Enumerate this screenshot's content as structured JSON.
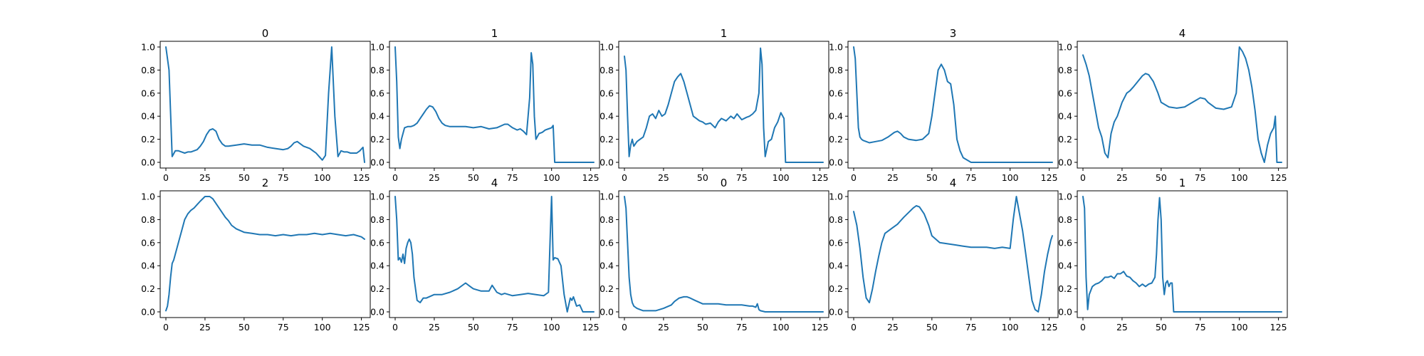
{
  "colors": {
    "series": "#1f77b4",
    "axes": "#000000",
    "background": "#ffffff"
  },
  "chart_data": [
    {
      "type": "line",
      "title": "0",
      "xlim": [
        0,
        127
      ],
      "ylim": [
        0,
        1
      ],
      "grid": false,
      "xticks": [
        0,
        25,
        50,
        75,
        100,
        125
      ],
      "yticks": [
        0.0,
        0.2,
        0.4,
        0.6,
        0.8,
        1.0
      ],
      "xticklabels": [
        "0",
        "25",
        "50",
        "75",
        "100",
        "125"
      ],
      "yticklabels": [
        "0.0",
        "0.2",
        "0.4",
        "0.6",
        "0.8",
        "1.0"
      ],
      "x": [
        0,
        2,
        4,
        6,
        8,
        10,
        12,
        14,
        16,
        18,
        20,
        22,
        24,
        26,
        28,
        30,
        32,
        34,
        36,
        38,
        40,
        45,
        50,
        55,
        60,
        65,
        70,
        75,
        78,
        80,
        82,
        84,
        86,
        88,
        90,
        92,
        94,
        96,
        98,
        100,
        102,
        104,
        106,
        108,
        110,
        112,
        114,
        116,
        118,
        120,
        122,
        124,
        126,
        127
      ],
      "y": [
        1.0,
        0.8,
        0.05,
        0.1,
        0.1,
        0.09,
        0.08,
        0.09,
        0.09,
        0.1,
        0.11,
        0.14,
        0.18,
        0.24,
        0.28,
        0.29,
        0.27,
        0.2,
        0.16,
        0.14,
        0.14,
        0.15,
        0.16,
        0.15,
        0.15,
        0.13,
        0.12,
        0.11,
        0.12,
        0.14,
        0.17,
        0.18,
        0.16,
        0.14,
        0.13,
        0.12,
        0.1,
        0.08,
        0.05,
        0.02,
        0.06,
        0.6,
        1.0,
        0.4,
        0.05,
        0.1,
        0.09,
        0.09,
        0.08,
        0.08,
        0.08,
        0.1,
        0.13,
        0.0
      ]
    },
    {
      "type": "line",
      "title": "1",
      "xlim": [
        0,
        127
      ],
      "ylim": [
        0,
        1
      ],
      "grid": false,
      "xticks": [
        0,
        25,
        50,
        75,
        100,
        125
      ],
      "yticks": [
        0.0,
        0.2,
        0.4,
        0.6,
        0.8,
        1.0
      ],
      "xticklabels": [
        "0",
        "25",
        "50",
        "75",
        "100",
        "125"
      ],
      "yticklabels": [
        "0.0",
        "0.2",
        "0.4",
        "0.6",
        "0.8",
        "1.0"
      ],
      "x": [
        0,
        1,
        2,
        3,
        4,
        6,
        8,
        10,
        12,
        14,
        16,
        18,
        20,
        22,
        24,
        26,
        28,
        30,
        32,
        35,
        40,
        45,
        50,
        55,
        60,
        65,
        70,
        72,
        75,
        78,
        80,
        82,
        84,
        86,
        87,
        88,
        89,
        90,
        92,
        94,
        96,
        98,
        100,
        101,
        102,
        127
      ],
      "y": [
        1.0,
        0.7,
        0.22,
        0.12,
        0.2,
        0.3,
        0.31,
        0.31,
        0.32,
        0.34,
        0.38,
        0.42,
        0.46,
        0.49,
        0.48,
        0.44,
        0.38,
        0.34,
        0.32,
        0.31,
        0.31,
        0.31,
        0.3,
        0.31,
        0.29,
        0.3,
        0.33,
        0.33,
        0.3,
        0.28,
        0.29,
        0.27,
        0.24,
        0.56,
        0.95,
        0.85,
        0.4,
        0.2,
        0.25,
        0.26,
        0.28,
        0.29,
        0.3,
        0.32,
        0.0,
        0.0
      ]
    },
    {
      "type": "line",
      "title": "1",
      "xlim": [
        0,
        127
      ],
      "ylim": [
        0,
        1
      ],
      "grid": false,
      "xticks": [
        0,
        25,
        50,
        75,
        100,
        125
      ],
      "yticks": [
        0.0,
        0.2,
        0.4,
        0.6,
        0.8,
        1.0
      ],
      "xticklabels": [
        "0",
        "25",
        "50",
        "75",
        "100",
        "125"
      ],
      "yticklabels": [
        "0.0",
        "0.2",
        "0.4",
        "0.6",
        "0.8",
        "1.0"
      ],
      "x": [
        0,
        1,
        2,
        3,
        4,
        5,
        6,
        8,
        10,
        12,
        14,
        16,
        18,
        20,
        22,
        24,
        26,
        28,
        30,
        32,
        34,
        36,
        38,
        40,
        42,
        44,
        46,
        48,
        50,
        52,
        55,
        58,
        60,
        62,
        65,
        68,
        70,
        72,
        75,
        78,
        80,
        82,
        84,
        86,
        87,
        88,
        89,
        90,
        92,
        94,
        96,
        98,
        100,
        102,
        103,
        127
      ],
      "y": [
        0.92,
        0.8,
        0.4,
        0.05,
        0.15,
        0.2,
        0.14,
        0.18,
        0.2,
        0.22,
        0.3,
        0.4,
        0.42,
        0.38,
        0.45,
        0.4,
        0.42,
        0.5,
        0.6,
        0.7,
        0.74,
        0.77,
        0.7,
        0.6,
        0.5,
        0.4,
        0.38,
        0.36,
        0.35,
        0.33,
        0.34,
        0.3,
        0.35,
        0.38,
        0.36,
        0.4,
        0.38,
        0.42,
        0.37,
        0.39,
        0.4,
        0.42,
        0.45,
        0.6,
        0.99,
        0.85,
        0.3,
        0.05,
        0.18,
        0.2,
        0.3,
        0.35,
        0.43,
        0.38,
        0.0,
        0.0
      ]
    },
    {
      "type": "line",
      "title": "3",
      "xlim": [
        0,
        127
      ],
      "ylim": [
        0,
        1
      ],
      "grid": false,
      "xticks": [
        0,
        25,
        50,
        75,
        100,
        125
      ],
      "yticks": [
        0.0,
        0.2,
        0.4,
        0.6,
        0.8,
        1.0
      ],
      "xticklabels": [
        "0",
        "25",
        "50",
        "75",
        "100",
        "125"
      ],
      "yticklabels": [
        "0.0",
        "0.2",
        "0.4",
        "0.6",
        "0.8",
        "1.0"
      ],
      "x": [
        0,
        1,
        2,
        3,
        4,
        5,
        6,
        8,
        10,
        14,
        18,
        22,
        26,
        28,
        30,
        32,
        35,
        40,
        44,
        48,
        50,
        52,
        54,
        56,
        58,
        60,
        62,
        64,
        66,
        68,
        70,
        75,
        80,
        90,
        100,
        110,
        120,
        127
      ],
      "y": [
        1.0,
        0.9,
        0.6,
        0.3,
        0.22,
        0.2,
        0.19,
        0.18,
        0.17,
        0.18,
        0.19,
        0.22,
        0.26,
        0.27,
        0.25,
        0.22,
        0.2,
        0.19,
        0.2,
        0.25,
        0.4,
        0.6,
        0.8,
        0.85,
        0.8,
        0.7,
        0.68,
        0.5,
        0.2,
        0.1,
        0.04,
        0.0,
        0.0,
        0.0,
        0.0,
        0.0,
        0.0,
        0.0
      ]
    },
    {
      "type": "line",
      "title": "4",
      "xlim": [
        0,
        127
      ],
      "ylim": [
        0,
        1
      ],
      "grid": false,
      "xticks": [
        0,
        25,
        50,
        75,
        100,
        125
      ],
      "yticks": [
        0.0,
        0.2,
        0.4,
        0.6,
        0.8,
        1.0
      ],
      "xticklabels": [
        "0",
        "25",
        "50",
        "75",
        "100",
        "125"
      ],
      "yticklabels": [
        "0.0",
        "0.2",
        "0.4",
        "0.6",
        "0.8",
        "1.0"
      ],
      "x": [
        0,
        2,
        4,
        6,
        8,
        10,
        12,
        14,
        16,
        18,
        20,
        22,
        25,
        28,
        30,
        32,
        35,
        38,
        40,
        42,
        45,
        48,
        50,
        55,
        60,
        65,
        70,
        75,
        78,
        80,
        85,
        90,
        95,
        98,
        100,
        102,
        104,
        106,
        108,
        110,
        112,
        114,
        116,
        118,
        120,
        122,
        123,
        124,
        127
      ],
      "y": [
        0.93,
        0.85,
        0.75,
        0.6,
        0.45,
        0.3,
        0.22,
        0.08,
        0.04,
        0.25,
        0.35,
        0.4,
        0.52,
        0.6,
        0.62,
        0.65,
        0.7,
        0.75,
        0.77,
        0.76,
        0.7,
        0.6,
        0.52,
        0.48,
        0.47,
        0.48,
        0.52,
        0.56,
        0.55,
        0.52,
        0.47,
        0.46,
        0.48,
        0.6,
        1.0,
        0.96,
        0.9,
        0.8,
        0.65,
        0.45,
        0.2,
        0.08,
        0.0,
        0.15,
        0.25,
        0.3,
        0.4,
        0.0,
        0.0
      ]
    },
    {
      "type": "line",
      "title": "2",
      "xlim": [
        0,
        127
      ],
      "ylim": [
        0,
        1
      ],
      "grid": false,
      "xticks": [
        0,
        25,
        50,
        75,
        100,
        125
      ],
      "yticks": [
        0.0,
        0.2,
        0.4,
        0.6,
        0.8,
        1.0
      ],
      "xticklabels": [
        "0",
        "25",
        "50",
        "75",
        "100",
        "125"
      ],
      "yticklabels": [
        "0.0",
        "0.2",
        "0.4",
        "0.6",
        "0.8",
        "1.0"
      ],
      "x": [
        0,
        1,
        2,
        3,
        4,
        5,
        6,
        8,
        10,
        12,
        14,
        16,
        18,
        20,
        22,
        25,
        28,
        30,
        32,
        35,
        38,
        40,
        42,
        45,
        50,
        55,
        60,
        65,
        70,
        75,
        80,
        85,
        90,
        95,
        100,
        105,
        110,
        115,
        120,
        125,
        127
      ],
      "y": [
        0.01,
        0.05,
        0.15,
        0.3,
        0.42,
        0.45,
        0.5,
        0.6,
        0.7,
        0.8,
        0.85,
        0.88,
        0.9,
        0.93,
        0.96,
        1.0,
        1.0,
        0.98,
        0.94,
        0.88,
        0.82,
        0.79,
        0.75,
        0.72,
        0.69,
        0.68,
        0.67,
        0.67,
        0.66,
        0.67,
        0.66,
        0.67,
        0.67,
        0.68,
        0.67,
        0.68,
        0.67,
        0.66,
        0.67,
        0.65,
        0.63
      ]
    },
    {
      "type": "line",
      "title": "4",
      "xlim": [
        0,
        127
      ],
      "ylim": [
        0,
        1
      ],
      "grid": false,
      "xticks": [
        0,
        25,
        50,
        75,
        100,
        125
      ],
      "yticks": [
        0.0,
        0.2,
        0.4,
        0.6,
        0.8,
        1.0
      ],
      "xticklabels": [
        "0",
        "25",
        "50",
        "75",
        "100",
        "125"
      ],
      "yticklabels": [
        "0.0",
        "0.2",
        "0.4",
        "0.6",
        "0.8",
        "1.0"
      ],
      "x": [
        0,
        1,
        2,
        3,
        4,
        5,
        6,
        7,
        8,
        9,
        10,
        11,
        12,
        14,
        16,
        18,
        20,
        25,
        30,
        35,
        40,
        45,
        48,
        50,
        55,
        60,
        62,
        65,
        68,
        70,
        75,
        80,
        85,
        90,
        95,
        98,
        99,
        100,
        101,
        102,
        104,
        106,
        108,
        110,
        112,
        113,
        114,
        116,
        118,
        120,
        122,
        124,
        127
      ],
      "y": [
        1.0,
        0.8,
        0.45,
        0.47,
        0.43,
        0.5,
        0.42,
        0.55,
        0.6,
        0.63,
        0.6,
        0.5,
        0.3,
        0.1,
        0.08,
        0.12,
        0.12,
        0.15,
        0.15,
        0.17,
        0.2,
        0.25,
        0.22,
        0.2,
        0.18,
        0.18,
        0.23,
        0.17,
        0.15,
        0.16,
        0.14,
        0.15,
        0.16,
        0.15,
        0.14,
        0.17,
        0.6,
        1.0,
        0.45,
        0.47,
        0.46,
        0.4,
        0.15,
        0.0,
        0.12,
        0.1,
        0.13,
        0.05,
        0.06,
        0.0,
        0.0,
        0.0,
        0.0
      ]
    },
    {
      "type": "line",
      "title": "0",
      "xlim": [
        0,
        127
      ],
      "ylim": [
        0,
        1
      ],
      "grid": false,
      "xticks": [
        0,
        25,
        50,
        75,
        100,
        125
      ],
      "yticks": [
        0.0,
        0.2,
        0.4,
        0.6,
        0.8,
        1.0
      ],
      "xticklabels": [
        "0",
        "25",
        "50",
        "75",
        "100",
        "125"
      ],
      "yticklabels": [
        "0.0",
        "0.2",
        "0.4",
        "0.6",
        "0.8",
        "1.0"
      ],
      "x": [
        0,
        1,
        2,
        3,
        4,
        5,
        6,
        7,
        8,
        10,
        12,
        15,
        20,
        25,
        30,
        32,
        35,
        38,
        40,
        42,
        45,
        50,
        55,
        60,
        65,
        70,
        75,
        80,
        82,
        84,
        85,
        86,
        87,
        90,
        95,
        100,
        105,
        110,
        115,
        120,
        125,
        127
      ],
      "y": [
        1.0,
        0.9,
        0.6,
        0.3,
        0.15,
        0.08,
        0.05,
        0.04,
        0.03,
        0.02,
        0.01,
        0.01,
        0.01,
        0.03,
        0.06,
        0.09,
        0.12,
        0.13,
        0.13,
        0.12,
        0.1,
        0.07,
        0.07,
        0.07,
        0.06,
        0.06,
        0.06,
        0.05,
        0.05,
        0.04,
        0.07,
        0.02,
        0.01,
        0.0,
        0.0,
        0.0,
        0.0,
        0.0,
        0.0,
        0.0,
        0.0,
        0.0
      ]
    },
    {
      "type": "line",
      "title": "4",
      "xlim": [
        0,
        127
      ],
      "ylim": [
        0,
        1
      ],
      "grid": false,
      "xticks": [
        0,
        25,
        50,
        75,
        100,
        125
      ],
      "yticks": [
        0.0,
        0.2,
        0.4,
        0.6,
        0.8,
        1.0
      ],
      "xticklabels": [
        "0",
        "25",
        "50",
        "75",
        "100",
        "125"
      ],
      "yticklabels": [
        "0.0",
        "0.2",
        "0.4",
        "0.6",
        "0.8",
        "1.0"
      ],
      "x": [
        0,
        2,
        4,
        6,
        8,
        10,
        12,
        14,
        16,
        18,
        20,
        22,
        25,
        28,
        30,
        32,
        35,
        38,
        40,
        42,
        45,
        48,
        50,
        55,
        60,
        65,
        70,
        75,
        80,
        85,
        90,
        95,
        100,
        102,
        104,
        106,
        108,
        110,
        112,
        114,
        116,
        118,
        120,
        122,
        124,
        126,
        127
      ],
      "y": [
        0.87,
        0.75,
        0.55,
        0.3,
        0.12,
        0.08,
        0.2,
        0.35,
        0.48,
        0.6,
        0.68,
        0.7,
        0.73,
        0.76,
        0.79,
        0.82,
        0.86,
        0.9,
        0.92,
        0.91,
        0.85,
        0.75,
        0.66,
        0.6,
        0.59,
        0.58,
        0.57,
        0.56,
        0.56,
        0.56,
        0.55,
        0.56,
        0.55,
        0.8,
        1.0,
        0.85,
        0.7,
        0.5,
        0.3,
        0.1,
        0.02,
        0.0,
        0.15,
        0.35,
        0.5,
        0.62,
        0.66
      ]
    },
    {
      "type": "line",
      "title": "1",
      "xlim": [
        0,
        127
      ],
      "ylim": [
        0,
        1
      ],
      "grid": false,
      "xticks": [
        0,
        25,
        50,
        75,
        100,
        125
      ],
      "yticks": [
        0.0,
        0.2,
        0.4,
        0.6,
        0.8,
        1.0
      ],
      "xticklabels": [
        "0",
        "25",
        "50",
        "75",
        "100",
        "125"
      ],
      "yticklabels": [
        "0.0",
        "0.2",
        "0.4",
        "0.6",
        "0.8",
        "1.0"
      ],
      "x": [
        0,
        1,
        2,
        3,
        4,
        6,
        8,
        10,
        12,
        14,
        16,
        18,
        20,
        22,
        24,
        26,
        28,
        30,
        32,
        34,
        36,
        38,
        40,
        42,
        44,
        46,
        47,
        48,
        49,
        50,
        51,
        52,
        53,
        54,
        55,
        56,
        57,
        58,
        60,
        65,
        70,
        80,
        90,
        100,
        110,
        120,
        125,
        127
      ],
      "y": [
        1.0,
        0.9,
        0.3,
        0.02,
        0.15,
        0.22,
        0.24,
        0.25,
        0.27,
        0.3,
        0.3,
        0.31,
        0.29,
        0.33,
        0.33,
        0.35,
        0.31,
        0.3,
        0.27,
        0.25,
        0.22,
        0.24,
        0.22,
        0.24,
        0.25,
        0.3,
        0.5,
        0.8,
        0.99,
        0.8,
        0.3,
        0.15,
        0.25,
        0.27,
        0.22,
        0.25,
        0.25,
        0.0,
        0.0,
        0.0,
        0.0,
        0.0,
        0.0,
        0.0,
        0.0,
        0.0,
        0.0,
        0.0
      ]
    }
  ]
}
